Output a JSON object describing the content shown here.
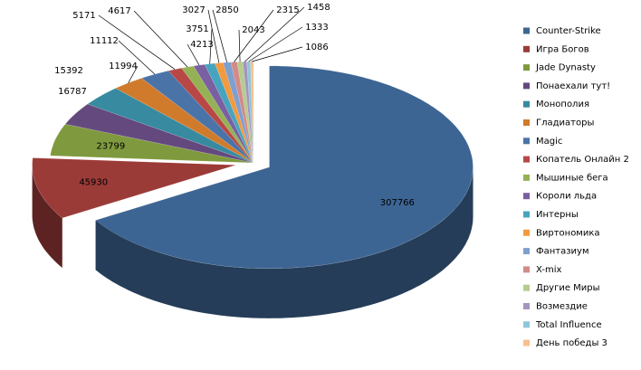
{
  "chart_data": {
    "type": "pie",
    "categories": [
      "Counter-Strike",
      "Игра Богов",
      "Jade Dynasty",
      "Понаехали тут!",
      "Монополия",
      "Гладиаторы",
      "Magic",
      "Копатель Онлайн 2",
      "Мышиные бега",
      "Короли льда",
      "Интерны",
      "Виртономика",
      "Фантазиум",
      "X-mix",
      "Другие Миры",
      "Возмездие",
      "Total Influence",
      "День победы 3"
    ],
    "values": [
      307766,
      45930,
      23799,
      16787,
      15392,
      11994,
      11112,
      5171,
      4617,
      4213,
      3751,
      3027,
      2850,
      2315,
      2043,
      1458,
      1333,
      1086
    ],
    "colors": [
      "#3d6593",
      "#9b3b38",
      "#7f9a3e",
      "#64497e",
      "#378a9f",
      "#d07b2c",
      "#4a74a8",
      "#b84846",
      "#94b255",
      "#7a60a0",
      "#46a4bf",
      "#f29a3f",
      "#7f9fcf",
      "#d38b88",
      "#b5cc8e",
      "#a594c0",
      "#8dc7d9",
      "#f9c08e"
    ],
    "legend": "right"
  }
}
